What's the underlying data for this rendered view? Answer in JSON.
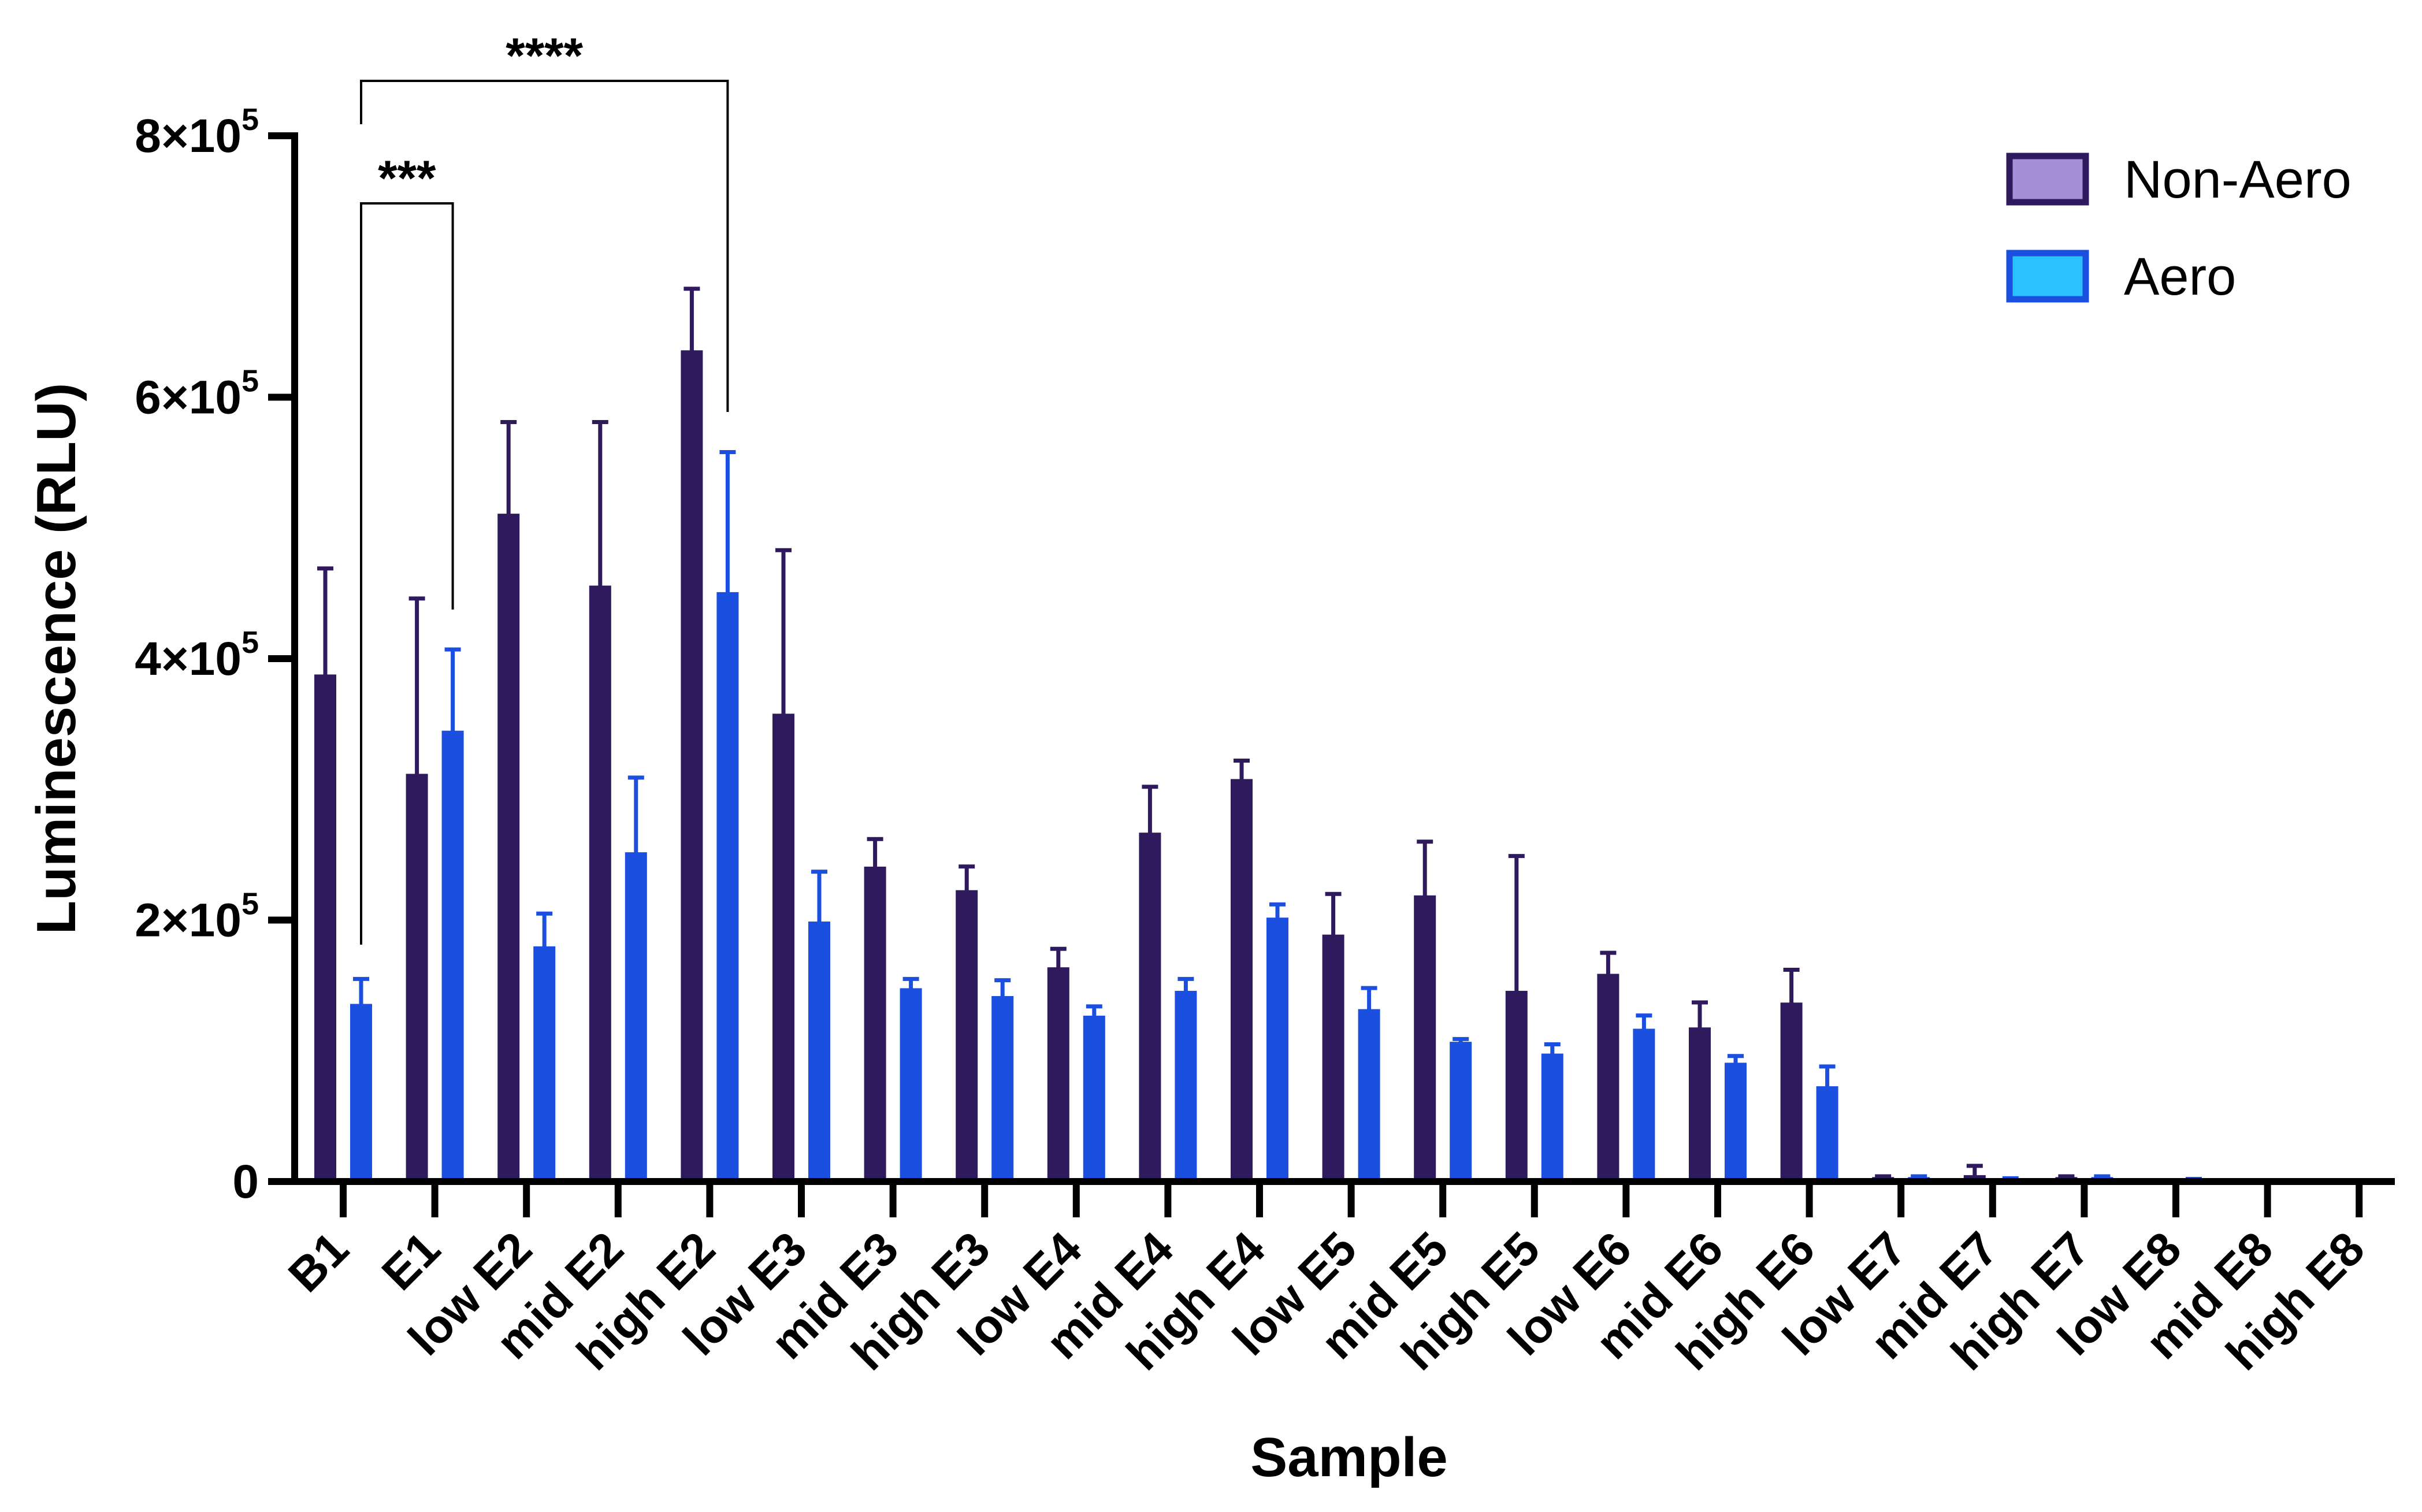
{
  "chart_data": {
    "type": "bar",
    "xlabel": "Sample",
    "ylabel": "Luminescence (RLU)",
    "ylim": [
      0,
      800000
    ],
    "yticks": [
      0,
      200000,
      400000,
      600000,
      800000
    ],
    "ytick_labels": [
      {
        "base": "0",
        "exp": ""
      },
      {
        "base": "2×10",
        "exp": "5"
      },
      {
        "base": "4×10",
        "exp": "5"
      },
      {
        "base": "6×10",
        "exp": "5"
      },
      {
        "base": "8×10",
        "exp": "5"
      }
    ],
    "categories": [
      "B1",
      "E1",
      "low E2",
      "mid E2",
      "high E2",
      "low E3",
      "mid E3",
      "high E3",
      "low E4",
      "mid E4",
      "high E4",
      "low E5",
      "mid E5",
      "high E5",
      "low E6",
      "mid E6",
      "high E6",
      "low E7",
      "mid E7",
      "high E7",
      "low E8",
      "mid E8",
      "high E8"
    ],
    "series": [
      {
        "name": "Non-Aero",
        "fill": "#a58fd6",
        "stroke": "#2e1a5c",
        "values": [
          387000,
          311000,
          510000,
          455000,
          635000,
          357000,
          240000,
          222000,
          163000,
          266000,
          307000,
          188000,
          218000,
          145000,
          158000,
          117000,
          136000,
          2500,
          4000,
          2500,
          0,
          0,
          0
        ],
        "errors": [
          82000,
          135000,
          71000,
          126000,
          48000,
          126000,
          22000,
          19000,
          15000,
          36000,
          15000,
          32000,
          42000,
          104000,
          17000,
          20000,
          26000,
          1500,
          8000,
          1500,
          0,
          0,
          0
        ]
      },
      {
        "name": "Aero",
        "fill": "#29c2ff",
        "stroke": "#1a4fe0",
        "values": [
          135000,
          344000,
          179000,
          251000,
          450000,
          198000,
          147000,
          141000,
          126000,
          145000,
          201000,
          131000,
          106000,
          97000,
          116000,
          90000,
          72000,
          2500,
          1500,
          2500,
          1000,
          0,
          0
        ],
        "errors": [
          20000,
          63000,
          26000,
          58000,
          108000,
          39000,
          8000,
          13000,
          8000,
          10000,
          11000,
          17000,
          3000,
          8000,
          11000,
          6000,
          16000,
          1500,
          1000,
          1500,
          1000,
          0,
          0
        ]
      }
    ],
    "significance": [
      {
        "label": "***",
        "from": "B1",
        "to": "E1"
      },
      {
        "label": "****",
        "from": "B1",
        "to": "high E2"
      }
    ],
    "legend_position": "top-right",
    "grid": false
  }
}
